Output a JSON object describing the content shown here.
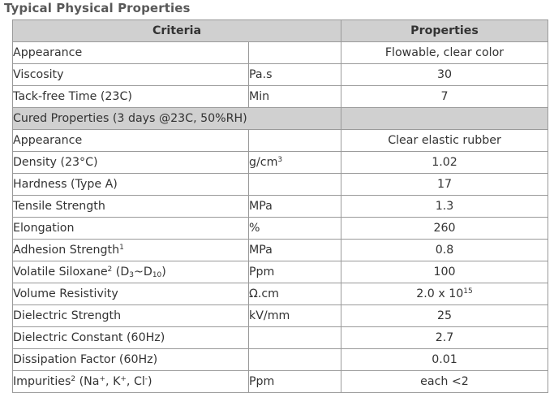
{
  "title": "Typical Physical Properties",
  "table": {
    "headers": {
      "criteria": "Criteria",
      "properties": "Properties"
    },
    "rows": {
      "appearance": {
        "criteria": "Appearance",
        "unit": "",
        "value": "Flowable, clear color"
      },
      "viscosity": {
        "criteria": "Viscosity",
        "unit": "Pa.s",
        "value": "30"
      },
      "tack_free": {
        "criteria": "Tack-free Time (23C)",
        "unit": "Min",
        "value": "7"
      },
      "cured_section": {
        "label": "Cured Properties (3 days @23C, 50%RH)"
      },
      "cured_appearance": {
        "criteria": "Appearance",
        "unit": "",
        "value": "Clear elastic rubber"
      },
      "density": {
        "criteria": "Density (23°C)",
        "unit_base": "g/cm",
        "unit_sup": "3",
        "value": "1.02"
      },
      "hardness": {
        "criteria": "Hardness (Type A)",
        "unit": "",
        "value": "17"
      },
      "tensile": {
        "criteria": "Tensile Strength",
        "unit": "MPa",
        "value": "1.3"
      },
      "elongation": {
        "criteria": "Elongation",
        "unit": "%",
        "value": "260"
      },
      "adhesion": {
        "criteria": "Adhesion Strength",
        "criteria_sup": "1",
        "unit": "MPa",
        "value": "0.8"
      },
      "siloxane": {
        "criteria": "Volatile Siloxane",
        "criteria_sup": "2",
        "paren_open": " (D",
        "sub1": "3",
        "tilde": "~D",
        "sub2": "10",
        "paren_close": ")",
        "unit": "Ppm",
        "value": "100"
      },
      "resistivity": {
        "criteria": "Volume Resistivity",
        "unit": "Ω.cm",
        "value_base": "2.0 x 10",
        "value_sup": "15"
      },
      "dielectric_strength": {
        "criteria": "Dielectric Strength",
        "unit": "kV/mm",
        "value": "25"
      },
      "dielectric_constant": {
        "criteria": "Dielectric Constant (60Hz)",
        "unit": "",
        "value": "2.7"
      },
      "dissipation": {
        "criteria": "Dissipation Factor (60Hz)",
        "unit": "",
        "value": "0.01"
      },
      "impurities": {
        "criteria": "Impurities",
        "criteria_sup": "2",
        "ions_open": " (Na",
        "sup_na": "+",
        "ions_k": ", K",
        "sup_k": "+",
        "ions_cl": ", Cl",
        "sup_cl": "-",
        "ions_close": ")",
        "unit": "Ppm",
        "value": "each <2"
      }
    }
  }
}
